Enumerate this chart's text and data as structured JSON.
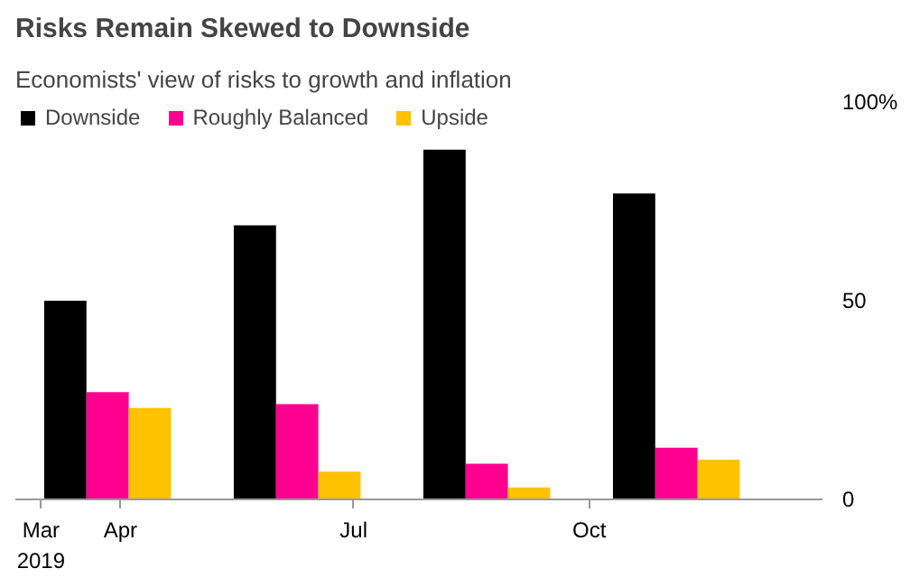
{
  "chart_data": {
    "type": "bar",
    "title": "Risks Remain Skewed to Downside",
    "subtitle": "Economists' view of risks to growth and inflation",
    "x": [
      "2019-03-27",
      "2019-06-09",
      "2019-08-22",
      "2019-11-04"
    ],
    "series": [
      {
        "name": "Downside",
        "color": "#000000",
        "values": [
          50,
          69,
          88,
          77
        ]
      },
      {
        "name": "Roughly Balanced",
        "color": "#ff0090",
        "values": [
          27,
          24,
          9,
          13
        ]
      },
      {
        "name": "Upside",
        "color": "#ffc200",
        "values": [
          23,
          7,
          3,
          10
        ]
      }
    ],
    "xlim": [
      "2019-02-19",
      "2019-12-31"
    ],
    "xticks": [
      {
        "value": "2019-03-01",
        "label": "Mar\n2019"
      },
      {
        "value": "2019-04-01",
        "label": "Apr"
      },
      {
        "value": "2019-07-01",
        "label": "Jul"
      },
      {
        "value": "2019-10-01",
        "label": "Oct"
      }
    ],
    "ylim": [
      0,
      100
    ],
    "yticks": [
      0,
      50,
      {
        "value": 100,
        "label": "100%"
      }
    ],
    "grid": false,
    "legend": "top left"
  }
}
